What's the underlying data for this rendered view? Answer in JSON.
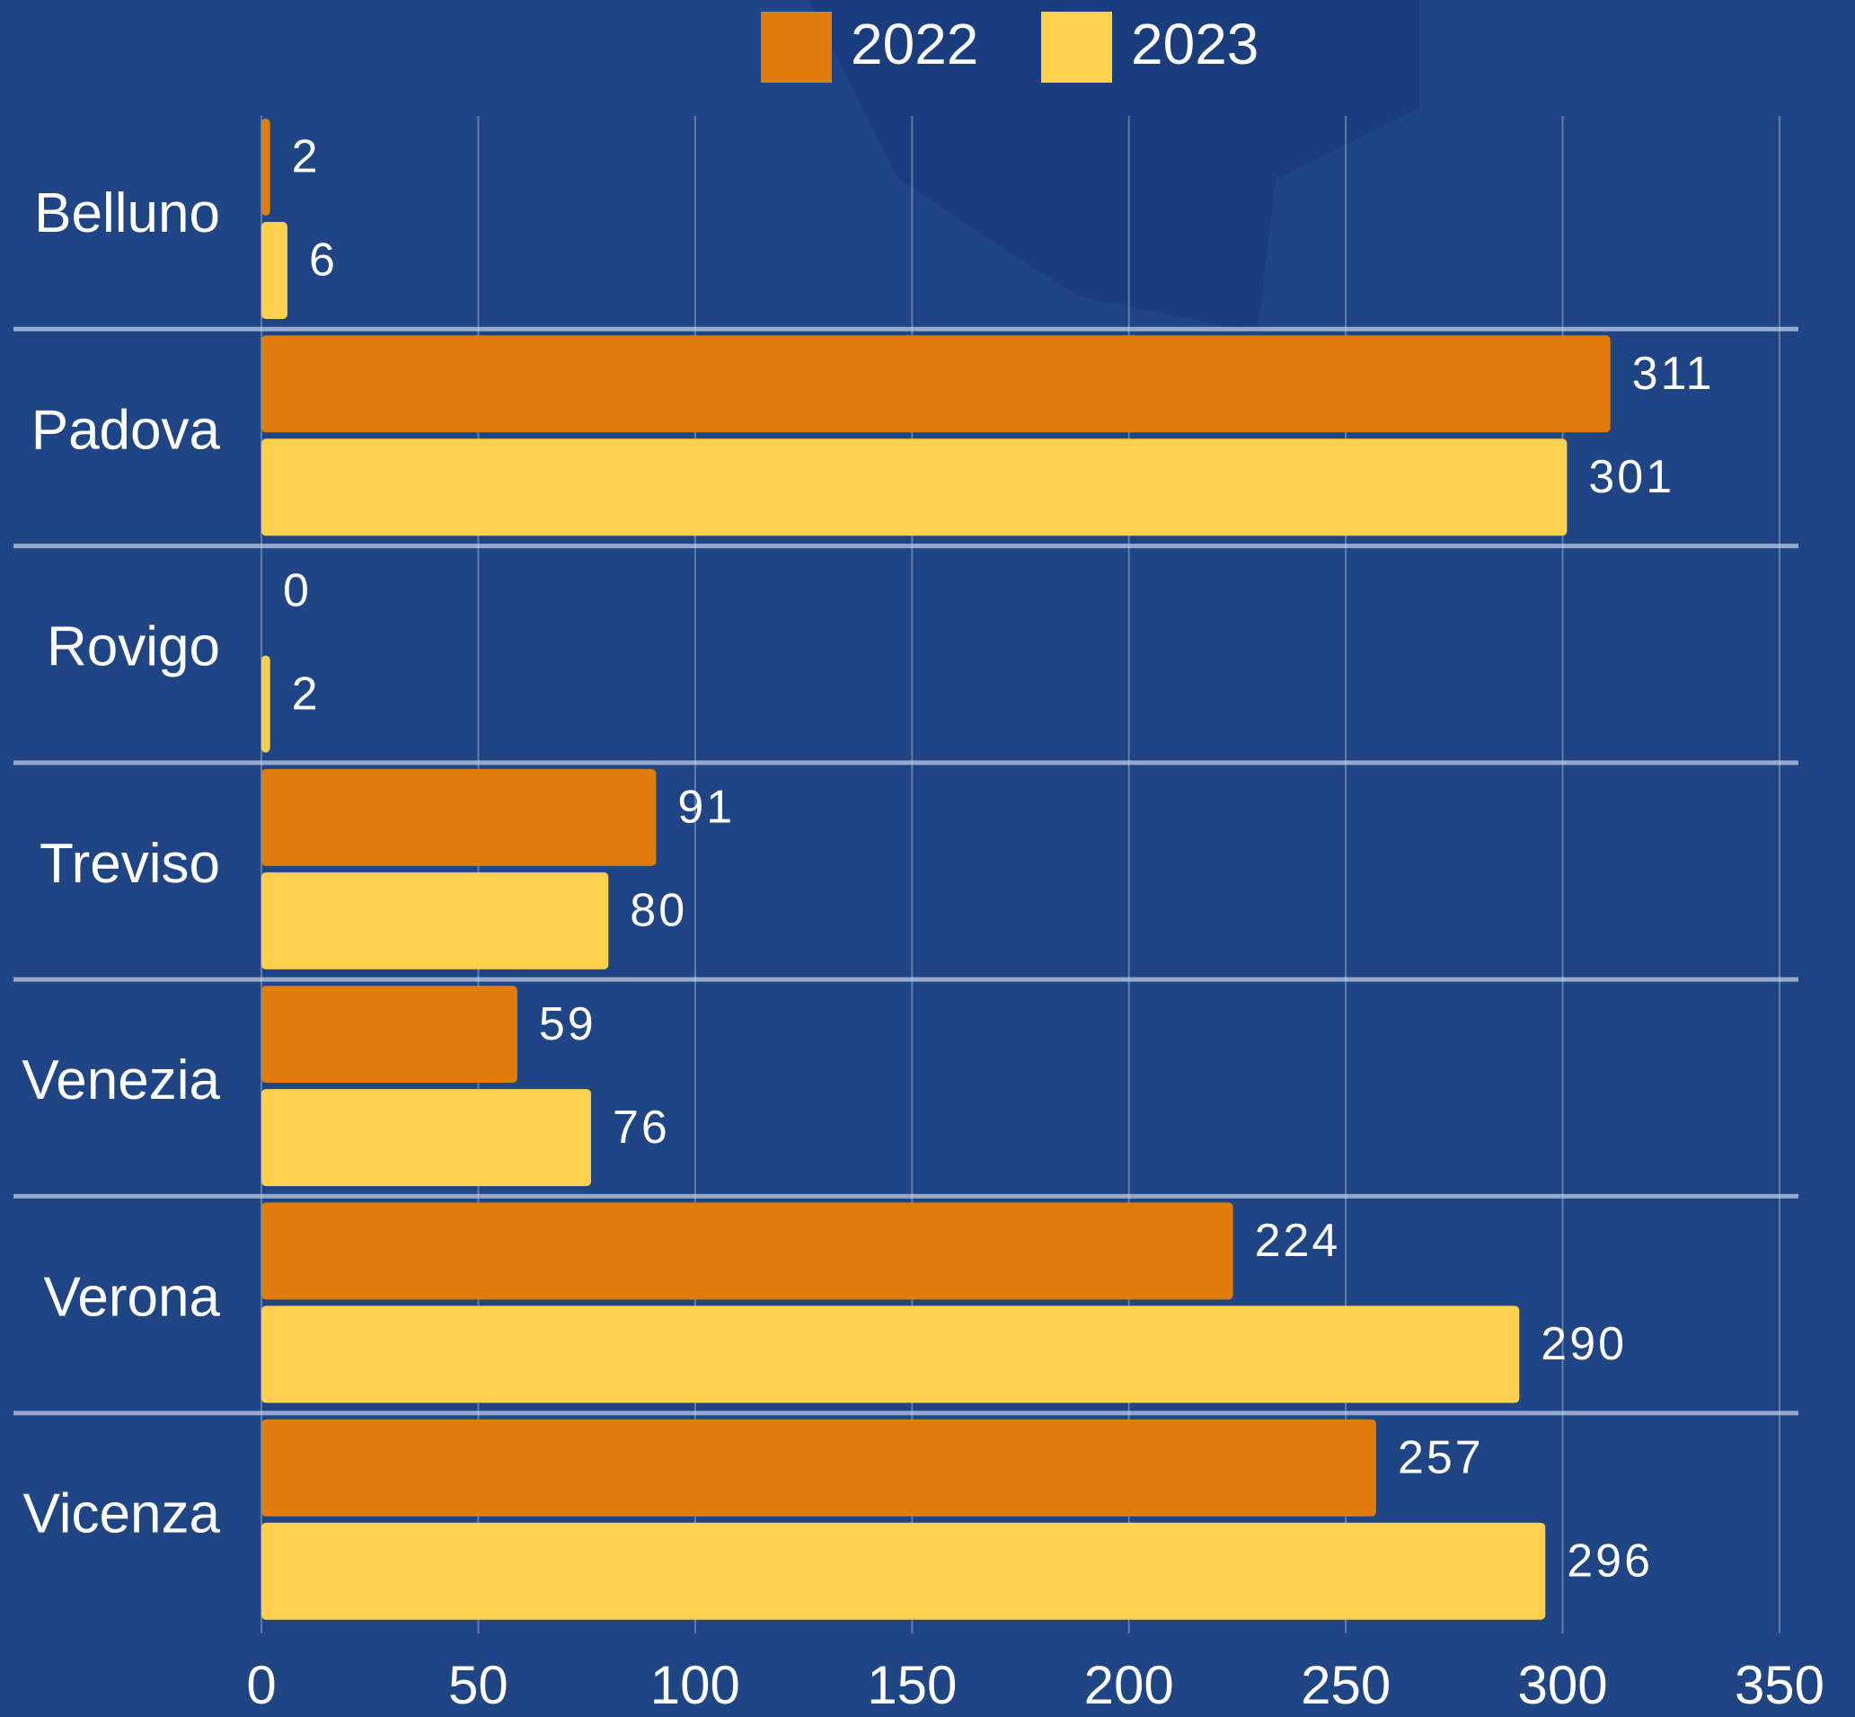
{
  "chart_data": {
    "type": "bar",
    "orientation": "horizontal",
    "categories": [
      "Belluno",
      "Padova",
      "Rovigo",
      "Treviso",
      "Venezia",
      "Verona",
      "Vicenza"
    ],
    "series": [
      {
        "name": "2022",
        "color": "#e07c0a",
        "values": [
          2,
          311,
          0,
          91,
          59,
          224,
          257
        ]
      },
      {
        "name": "2023",
        "color": "#ffd04d",
        "values": [
          6,
          301,
          2,
          80,
          76,
          290,
          296
        ]
      }
    ],
    "xlim": [
      0,
      350
    ],
    "xticks": [
      0,
      50,
      100,
      150,
      200,
      250,
      300,
      350
    ],
    "grid": true,
    "legend": "top"
  }
}
